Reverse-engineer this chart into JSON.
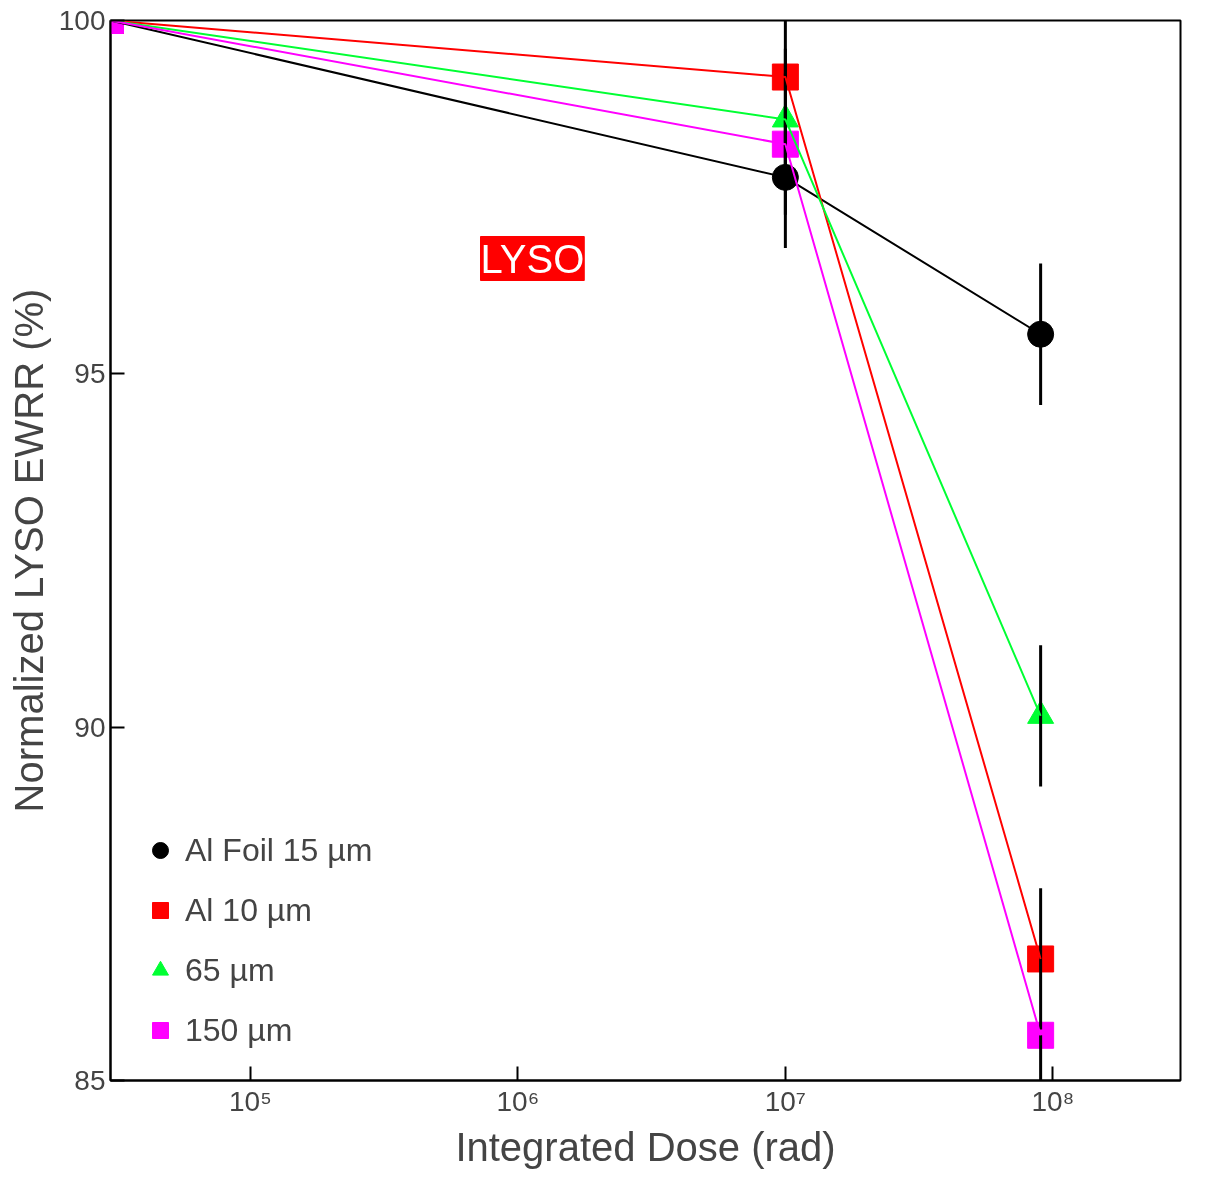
{
  "chart_data": {
    "type": "line",
    "xlabel": "Integrated Dose (rad)",
    "ylabel": "Normalized LYSO EWRR (%)",
    "annotations": [
      "LYSO"
    ],
    "log": "x",
    "grid": false,
    "legend": "bottom left",
    "xlim": [
      30000,
      300000000
    ],
    "ylim": [
      85,
      100
    ],
    "xticks": [
      {
        "value": 100000,
        "label": "10⁵"
      },
      {
        "value": 1000000,
        "label": "10⁶"
      },
      {
        "value": 10000000,
        "label": "10⁷"
      },
      {
        "value": 100000000,
        "label": "10⁸"
      }
    ],
    "yticks": [
      85,
      90,
      95,
      100
    ],
    "x": [
      30000,
      10000000,
      90000000
    ],
    "series": [
      {
        "name": "Al Foil 15 µm",
        "color": "#000000",
        "marker": "circle",
        "values": [
          100,
          97.78,
          95.56
        ],
        "errors": [
          null,
          1.0,
          1.0
        ]
      },
      {
        "name": "Al 10 µm",
        "color": "#ff0000",
        "marker": "square",
        "values": [
          100,
          99.2,
          86.72
        ],
        "errors": [
          null,
          [
            99.2,
            100
          ],
          1.0
        ]
      },
      {
        "name": "65 µm",
        "color": "#00ff33",
        "marker": "triangle",
        "values": [
          100,
          98.6,
          90.16
        ],
        "errors": [
          null,
          1.0,
          1.0
        ]
      },
      {
        "name": "150 µm",
        "color": "#ff00ff",
        "marker": "square",
        "values": [
          100,
          98.25,
          85.64
        ],
        "errors": [
          null,
          1.0,
          [
            85,
            85.64
          ]
        ]
      }
    ]
  }
}
